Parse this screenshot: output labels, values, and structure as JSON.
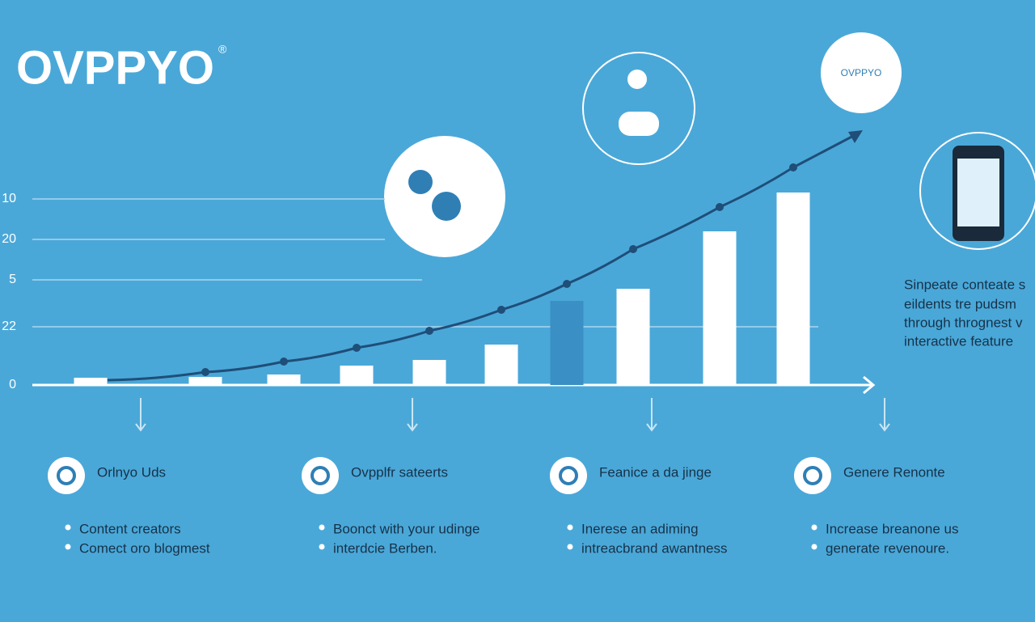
{
  "logo": {
    "name": "OVPPYO",
    "mark": "®"
  },
  "badge": "OVPPYO",
  "side_text": [
    "Sinpeate conteate s",
    "eildents tre pudsm",
    "through thrognest v",
    "interactive feature"
  ],
  "features": [
    {
      "title": "Orlnyo Uds",
      "bullets": [
        "Content creators",
        "Comect oro blogmest"
      ]
    },
    {
      "title": "Ovpplfr sateerts",
      "bullets": [
        "Boonct with your udinge",
        "interdcie Berben."
      ]
    },
    {
      "title": "Feanice a da jinge",
      "bullets": [
        "Inerese an adiming",
        "intreacbrand awantness"
      ]
    },
    {
      "title": "Genere Renonte",
      "bullets": [
        "Increase breanone us",
        "generate revenoure."
      ]
    }
  ],
  "chart_data": {
    "type": "bar",
    "y_axis_labels": [
      "10",
      "20",
      "5",
      "22",
      "0"
    ],
    "ylim": [
      0,
      130
    ],
    "categories": [
      null,
      null,
      null,
      null,
      null,
      null,
      null,
      null,
      null,
      null
    ],
    "series": [
      {
        "type": "bar",
        "colors": [
          "#ffffff",
          "#ffffff",
          "#ffffff",
          "#ffffff",
          "#ffffff",
          "#ffffff",
          "#3a8fc4",
          "#ffffff",
          "#ffffff",
          "#ffffff"
        ],
        "values": [
          3.6,
          4,
          5.2,
          9.6,
          12.4,
          20,
          41.6,
          47.6,
          76,
          95.2
        ]
      },
      {
        "type": "line",
        "color": "#1f4e79",
        "values": [
          2.4,
          6.4,
          11.6,
          18.4,
          26.8,
          37.2,
          50,
          67.2,
          88,
          107.6
        ]
      }
    ]
  }
}
